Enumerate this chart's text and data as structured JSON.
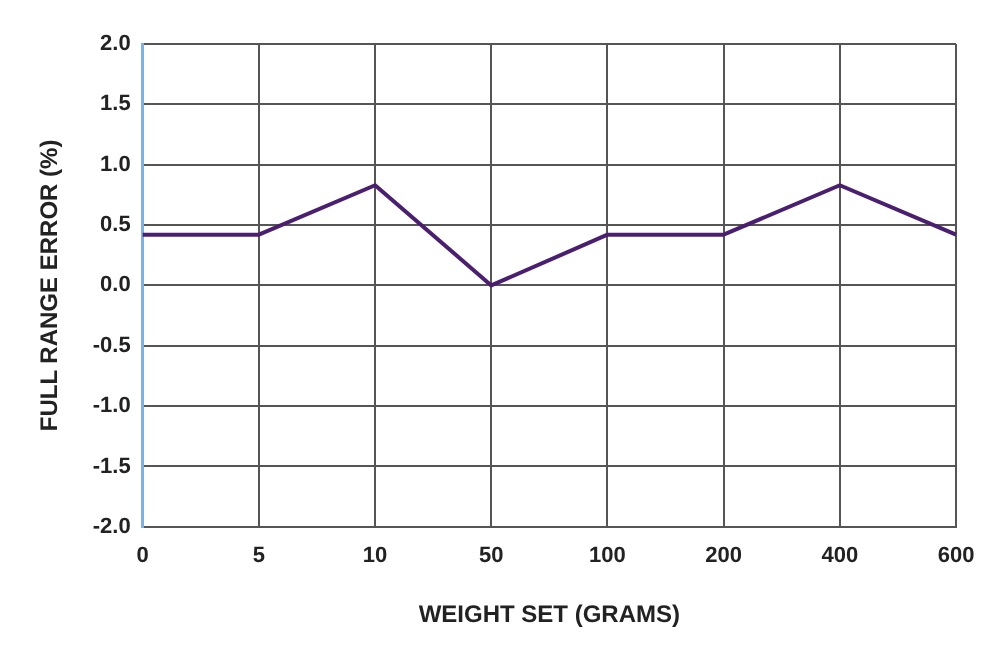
{
  "chart_data": {
    "type": "line",
    "xlabel": "WEIGHT SET (GRAMS)",
    "ylabel": "FULL RANGE ERROR (%)",
    "categories": [
      "0",
      "5",
      "10",
      "50",
      "100",
      "200",
      "400",
      "600"
    ],
    "series": [
      {
        "color": "#4b1f6f",
        "values": [
          0.42,
          0.42,
          0.83,
          0,
          0.42,
          0.42,
          0.83,
          0.42
        ]
      }
    ],
    "ylim": [
      -2,
      2
    ],
    "yticks": [
      {
        "value": -2,
        "label": "-2.0"
      },
      {
        "value": -1.5,
        "label": "-1.5"
      },
      {
        "value": -1,
        "label": "-1.0"
      },
      {
        "value": -0.5,
        "label": "-0.5"
      },
      {
        "value": 0,
        "label": "0.0"
      },
      {
        "value": 0.5,
        "label": "0.5"
      },
      {
        "value": 1,
        "label": "1.0"
      },
      {
        "value": 1.5,
        "label": "1.5"
      },
      {
        "value": 2,
        "label": "2.0"
      }
    ],
    "grid": true,
    "legend": false,
    "marker": "none",
    "line_style": "solid"
  }
}
